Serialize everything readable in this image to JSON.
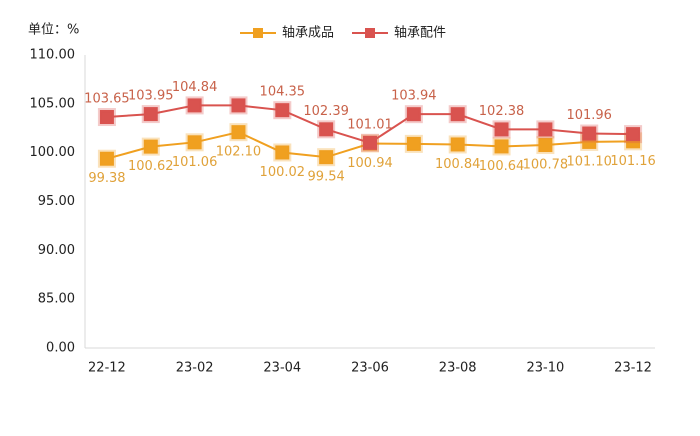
{
  "chart_data": {
    "type": "line",
    "unit_label": "单位：%",
    "categories": [
      "22-12",
      null,
      "23-02",
      null,
      "23-04",
      null,
      "23-06",
      null,
      "23-08",
      null,
      "23-10",
      null,
      "23-12"
    ],
    "ylim": [
      0,
      110
    ],
    "yticks": [
      {
        "value": 0,
        "label": "0.00"
      },
      {
        "value": 85,
        "label": "85.00"
      },
      {
        "value": 90,
        "label": "90.00"
      },
      {
        "value": 95,
        "label": "95.00"
      },
      {
        "value": 100,
        "label": "100.00"
      },
      {
        "value": 105,
        "label": "105.00"
      },
      {
        "value": 110,
        "label": "110.00"
      }
    ],
    "series": [
      {
        "name": "轴承成品",
        "color": "#f0a020",
        "label_color": "#e0a23a",
        "label_side": "below",
        "values": [
          99.38,
          100.62,
          101.06,
          102.1,
          100.02,
          99.54,
          100.94,
          100.9,
          100.84,
          100.64,
          100.78,
          101.1,
          101.16
        ],
        "value_labels": [
          "99.38",
          "100.62",
          "101.06",
          "102.10",
          "100.02",
          "99.54",
          "100.94",
          null,
          "100.84",
          "100.64",
          "100.78",
          "101.10",
          "101.16"
        ]
      },
      {
        "name": "轴承配件",
        "color": "#d9534f",
        "label_color": "#c8624a",
        "label_side": "above",
        "values": [
          103.65,
          103.95,
          104.84,
          104.84,
          104.35,
          102.39,
          101.01,
          103.94,
          103.94,
          102.38,
          102.38,
          101.96,
          101.9
        ],
        "value_labels": [
          "103.65",
          "103.95",
          "104.84",
          null,
          "104.35",
          "102.39",
          "101.01",
          "103.94",
          null,
          "102.38",
          null,
          "101.96",
          null
        ]
      }
    ]
  }
}
